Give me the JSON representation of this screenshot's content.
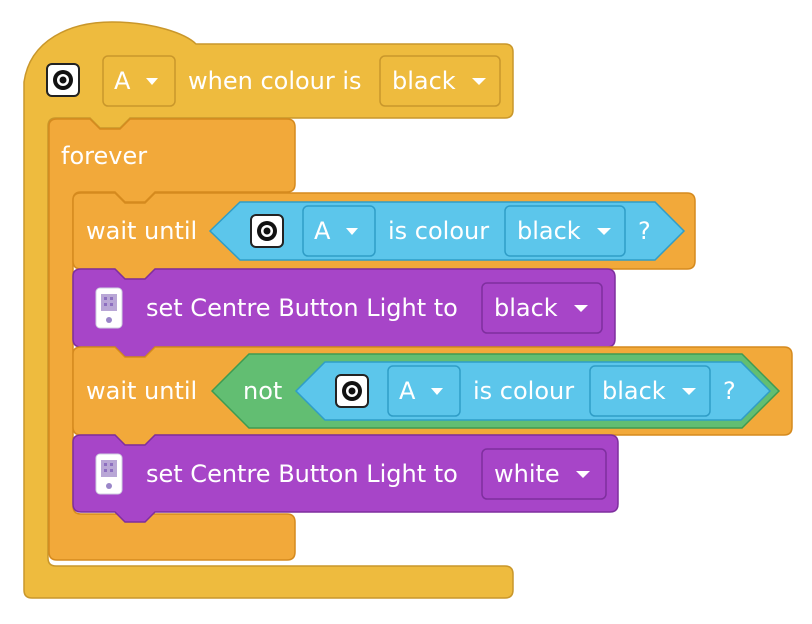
{
  "colors": {
    "event": "#EEBB3E",
    "event_stroke": "#C9972B",
    "control": "#F2A93A",
    "control_stroke": "#D58A1E",
    "sensor": "#5CC6EB",
    "sensor_stroke": "#2F9DC7",
    "operator": "#62BE72",
    "operator_stroke": "#3E9B52",
    "light": "#A745C8",
    "light_stroke": "#7E2F9E"
  },
  "hat": {
    "sensor_icon": "colour-sensor-icon",
    "port": "A",
    "text": "when colour is",
    "colour": "black"
  },
  "forever": {
    "label": "forever"
  },
  "stack": [
    {
      "type": "wait_until",
      "label": "wait until",
      "condition": {
        "sensor_icon": "colour-sensor-icon",
        "port": "A",
        "text": "is colour",
        "colour": "black",
        "suffix": "?"
      }
    },
    {
      "type": "set_light",
      "icon": "hub-icon",
      "label": "set Centre Button Light to",
      "value": "black"
    },
    {
      "type": "wait_until",
      "label": "wait until",
      "operator": "not",
      "condition": {
        "sensor_icon": "colour-sensor-icon",
        "port": "A",
        "text": "is colour",
        "colour": "black",
        "suffix": "?"
      }
    },
    {
      "type": "set_light",
      "icon": "hub-icon",
      "label": "set Centre Button Light to",
      "value": "white"
    }
  ]
}
